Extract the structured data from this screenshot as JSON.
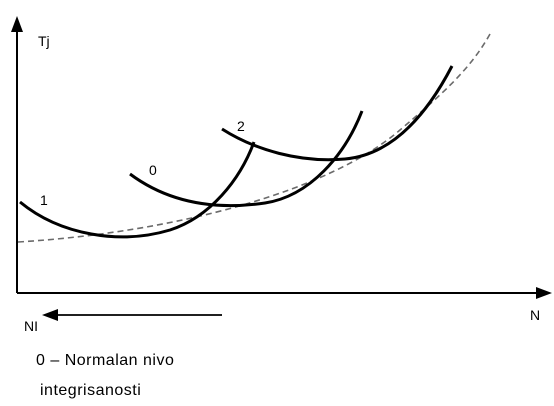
{
  "axes": {
    "y_label": "Tj",
    "x_label": "N",
    "left_arrow_label": "NI"
  },
  "curves": {
    "label_1": "1",
    "label_0": "0",
    "label_2": "2"
  },
  "caption": {
    "line1": "0 – Normalan nivo",
    "line2": "integrisanosti"
  },
  "colors": {
    "ink": "#000000",
    "envelope": "#6b6b6b"
  }
}
